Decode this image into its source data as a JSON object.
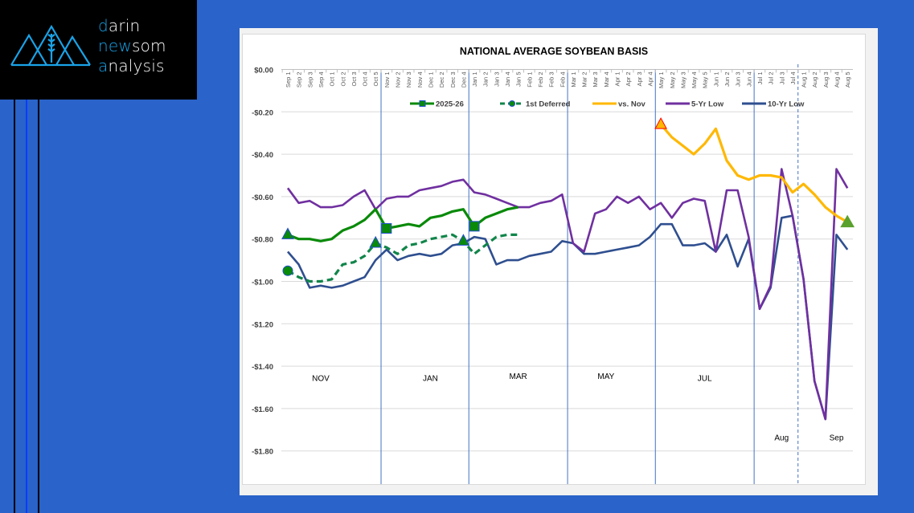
{
  "brand": {
    "line1": {
      "accent": "d",
      "rest": "arin"
    },
    "line2": {
      "pre": "n",
      "mid_accent": "ew",
      "rest": "som"
    },
    "line3": {
      "accent": "a",
      "rest": "nalysis"
    },
    "logo_icon": "mountains-wheat-icon",
    "accent_color": "#1aa3e8"
  },
  "chart_data": {
    "type": "line",
    "title": "NATIONAL AVERAGE SOYBEAN BASIS",
    "xlabel": "",
    "ylabel": "",
    "ylim": [
      -2.0,
      0.0
    ],
    "yticks": [
      0.0,
      -0.2,
      -0.4,
      -0.6,
      -0.8,
      -1.0,
      -1.2,
      -1.4,
      -1.6,
      -1.8
    ],
    "ytick_labels": [
      "$0.00",
      "-$0.20",
      "-$0.40",
      "-$0.60",
      "-$0.80",
      "-$1.00",
      "-$1.20",
      "-$1.40",
      "-$1.60",
      "-$1.80"
    ],
    "grid": true,
    "legend_position": "top",
    "categories": [
      "Sep 1",
      "Sep 2",
      "Sep 3",
      "Sep 4",
      "Oct 1",
      "Oct 2",
      "Oct 3",
      "Oct 4",
      "Oct 5",
      "Nov 1",
      "Nov 2",
      "Nov 3",
      "Nov 4",
      "Dec 1",
      "Dec 2",
      "Dec 3",
      "Dec 4",
      "Jan 1",
      "Jan 2",
      "Jan 3",
      "Jan 4",
      "Jan 5",
      "Feb 1",
      "Feb 2",
      "Feb 3",
      "Feb 4",
      "Mar 1",
      "Mar 2",
      "Mar 3",
      "Mar 4",
      "Apr 1",
      "Apr 2",
      "Apr 3",
      "Apr 4",
      "May 1",
      "May 2",
      "May 3",
      "May 4",
      "May 5",
      "Jun 1",
      "Jun 2",
      "Jun 3",
      "Jun 4",
      "Jul 1",
      "Jul 2",
      "Jul 3",
      "Jul 4",
      "Aug 1",
      "Aug 2",
      "Aug 3",
      "Aug 4",
      "Aug 5"
    ],
    "series": [
      {
        "name": "2025-26",
        "color": "#0a8a0a",
        "style": "solid",
        "marker_points": [
          {
            "index": 0,
            "shape": "triangle"
          },
          {
            "index": 9,
            "shape": "square"
          },
          {
            "index": 17,
            "shape": "square"
          }
        ],
        "values": [
          -0.78,
          -0.8,
          -0.8,
          -0.81,
          -0.8,
          -0.76,
          -0.74,
          -0.71,
          -0.66,
          -0.75,
          -0.74,
          -0.73,
          -0.74,
          -0.7,
          -0.69,
          -0.67,
          -0.66,
          -0.74,
          -0.7,
          -0.68,
          -0.66,
          -0.65,
          null,
          null,
          null,
          null,
          null,
          null,
          null,
          null,
          null,
          null,
          null,
          null,
          null,
          null,
          null,
          null,
          null,
          null,
          null,
          null,
          null,
          null,
          null,
          null,
          null,
          null,
          null,
          null,
          null,
          null
        ]
      },
      {
        "name": "1st Deferred",
        "color": "#11854a",
        "style": "dashed",
        "marker_points": [
          {
            "index": 0,
            "shape": "circle"
          },
          {
            "index": 8,
            "shape": "triangle"
          },
          {
            "index": 16,
            "shape": "triangle"
          }
        ],
        "values": [
          -0.95,
          -0.98,
          -1.0,
          -1.0,
          -0.99,
          -0.92,
          -0.91,
          -0.88,
          -0.82,
          -0.84,
          -0.87,
          -0.83,
          -0.82,
          -0.8,
          -0.79,
          -0.78,
          -0.81,
          -0.87,
          -0.83,
          -0.79,
          -0.78,
          -0.78,
          null,
          null,
          null,
          null,
          null,
          null,
          null,
          null,
          null,
          null,
          null,
          null,
          null,
          null,
          null,
          null,
          null,
          null,
          null,
          null,
          null,
          null,
          null,
          null,
          null,
          null,
          null,
          null,
          null,
          null
        ]
      },
      {
        "name": "vs. Nov",
        "color": "#ffb800",
        "style": "solid",
        "marker_points": [
          {
            "index": 34,
            "shape": "triangle-orange"
          },
          {
            "index": 51,
            "shape": "triangle-green"
          }
        ],
        "values": [
          null,
          null,
          null,
          null,
          null,
          null,
          null,
          null,
          null,
          null,
          null,
          null,
          null,
          null,
          null,
          null,
          null,
          null,
          null,
          null,
          null,
          null,
          null,
          null,
          null,
          null,
          null,
          null,
          null,
          null,
          null,
          null,
          null,
          null,
          -0.26,
          -0.32,
          -0.36,
          -0.4,
          -0.35,
          -0.28,
          -0.43,
          -0.5,
          -0.52,
          -0.5,
          -0.5,
          -0.51,
          -0.58,
          -0.54,
          -0.59,
          -0.65,
          -0.69,
          -0.72
        ]
      },
      {
        "name": "5-Yr Low",
        "color": "#7030a0",
        "style": "solid",
        "marker_points": [],
        "values": [
          -0.56,
          -0.63,
          -0.62,
          -0.65,
          -0.65,
          -0.64,
          -0.6,
          -0.57,
          -0.66,
          -0.61,
          -0.6,
          -0.6,
          -0.57,
          -0.56,
          -0.55,
          -0.53,
          -0.52,
          -0.58,
          -0.59,
          -0.61,
          -0.63,
          -0.65,
          -0.65,
          -0.63,
          -0.62,
          -0.59,
          -0.82,
          -0.86,
          -0.68,
          -0.66,
          -0.6,
          -0.63,
          -0.6,
          -0.66,
          -0.63,
          -0.7,
          -0.63,
          -0.61,
          -0.62,
          -0.86,
          -0.57,
          -0.57,
          -0.79,
          -1.13,
          -1.02,
          -0.47,
          -0.69,
          -0.99,
          -1.47,
          -1.65,
          -0.47,
          -0.56
        ]
      },
      {
        "name": "10-Yr Low",
        "color": "#2f4f8f",
        "style": "solid",
        "marker_points": [],
        "values": [
          -0.86,
          -0.92,
          -1.03,
          -1.02,
          -1.03,
          -1.02,
          -1.0,
          -0.98,
          -0.9,
          -0.85,
          -0.9,
          -0.88,
          -0.87,
          -0.88,
          -0.87,
          -0.83,
          -0.82,
          -0.79,
          -0.8,
          -0.92,
          -0.9,
          -0.9,
          -0.88,
          -0.87,
          -0.86,
          -0.81,
          -0.82,
          -0.87,
          -0.87,
          -0.86,
          -0.85,
          -0.84,
          -0.83,
          -0.79,
          -0.73,
          -0.73,
          -0.83,
          -0.83,
          -0.82,
          -0.86,
          -0.78,
          -0.93,
          -0.8,
          -1.13,
          -1.03,
          -0.7,
          -0.69,
          -0.99,
          -1.47,
          -1.65,
          -0.78,
          -0.85
        ]
      }
    ],
    "dividers": [
      {
        "after_index": 8,
        "style": "solid"
      },
      {
        "after_index": 16,
        "style": "solid"
      },
      {
        "after_index": 25,
        "style": "solid"
      },
      {
        "after_index": 33,
        "style": "solid"
      },
      {
        "after_index": 42,
        "style": "solid"
      },
      {
        "after_index": 46,
        "style": "dashed"
      }
    ],
    "period_labels": [
      {
        "text": "NOV",
        "at_index": 3,
        "value": -1.47
      },
      {
        "text": "JAN",
        "at_index": 13,
        "value": -1.47
      },
      {
        "text": "MAR",
        "at_index": 21,
        "value": -1.46
      },
      {
        "text": "MAY",
        "at_index": 29,
        "value": -1.46
      },
      {
        "text": "JUL",
        "at_index": 38,
        "value": -1.47
      },
      {
        "text": "Aug",
        "at_index": 45,
        "value": -1.75
      },
      {
        "text": "Sep",
        "at_index": 50,
        "value": -1.75
      }
    ]
  }
}
